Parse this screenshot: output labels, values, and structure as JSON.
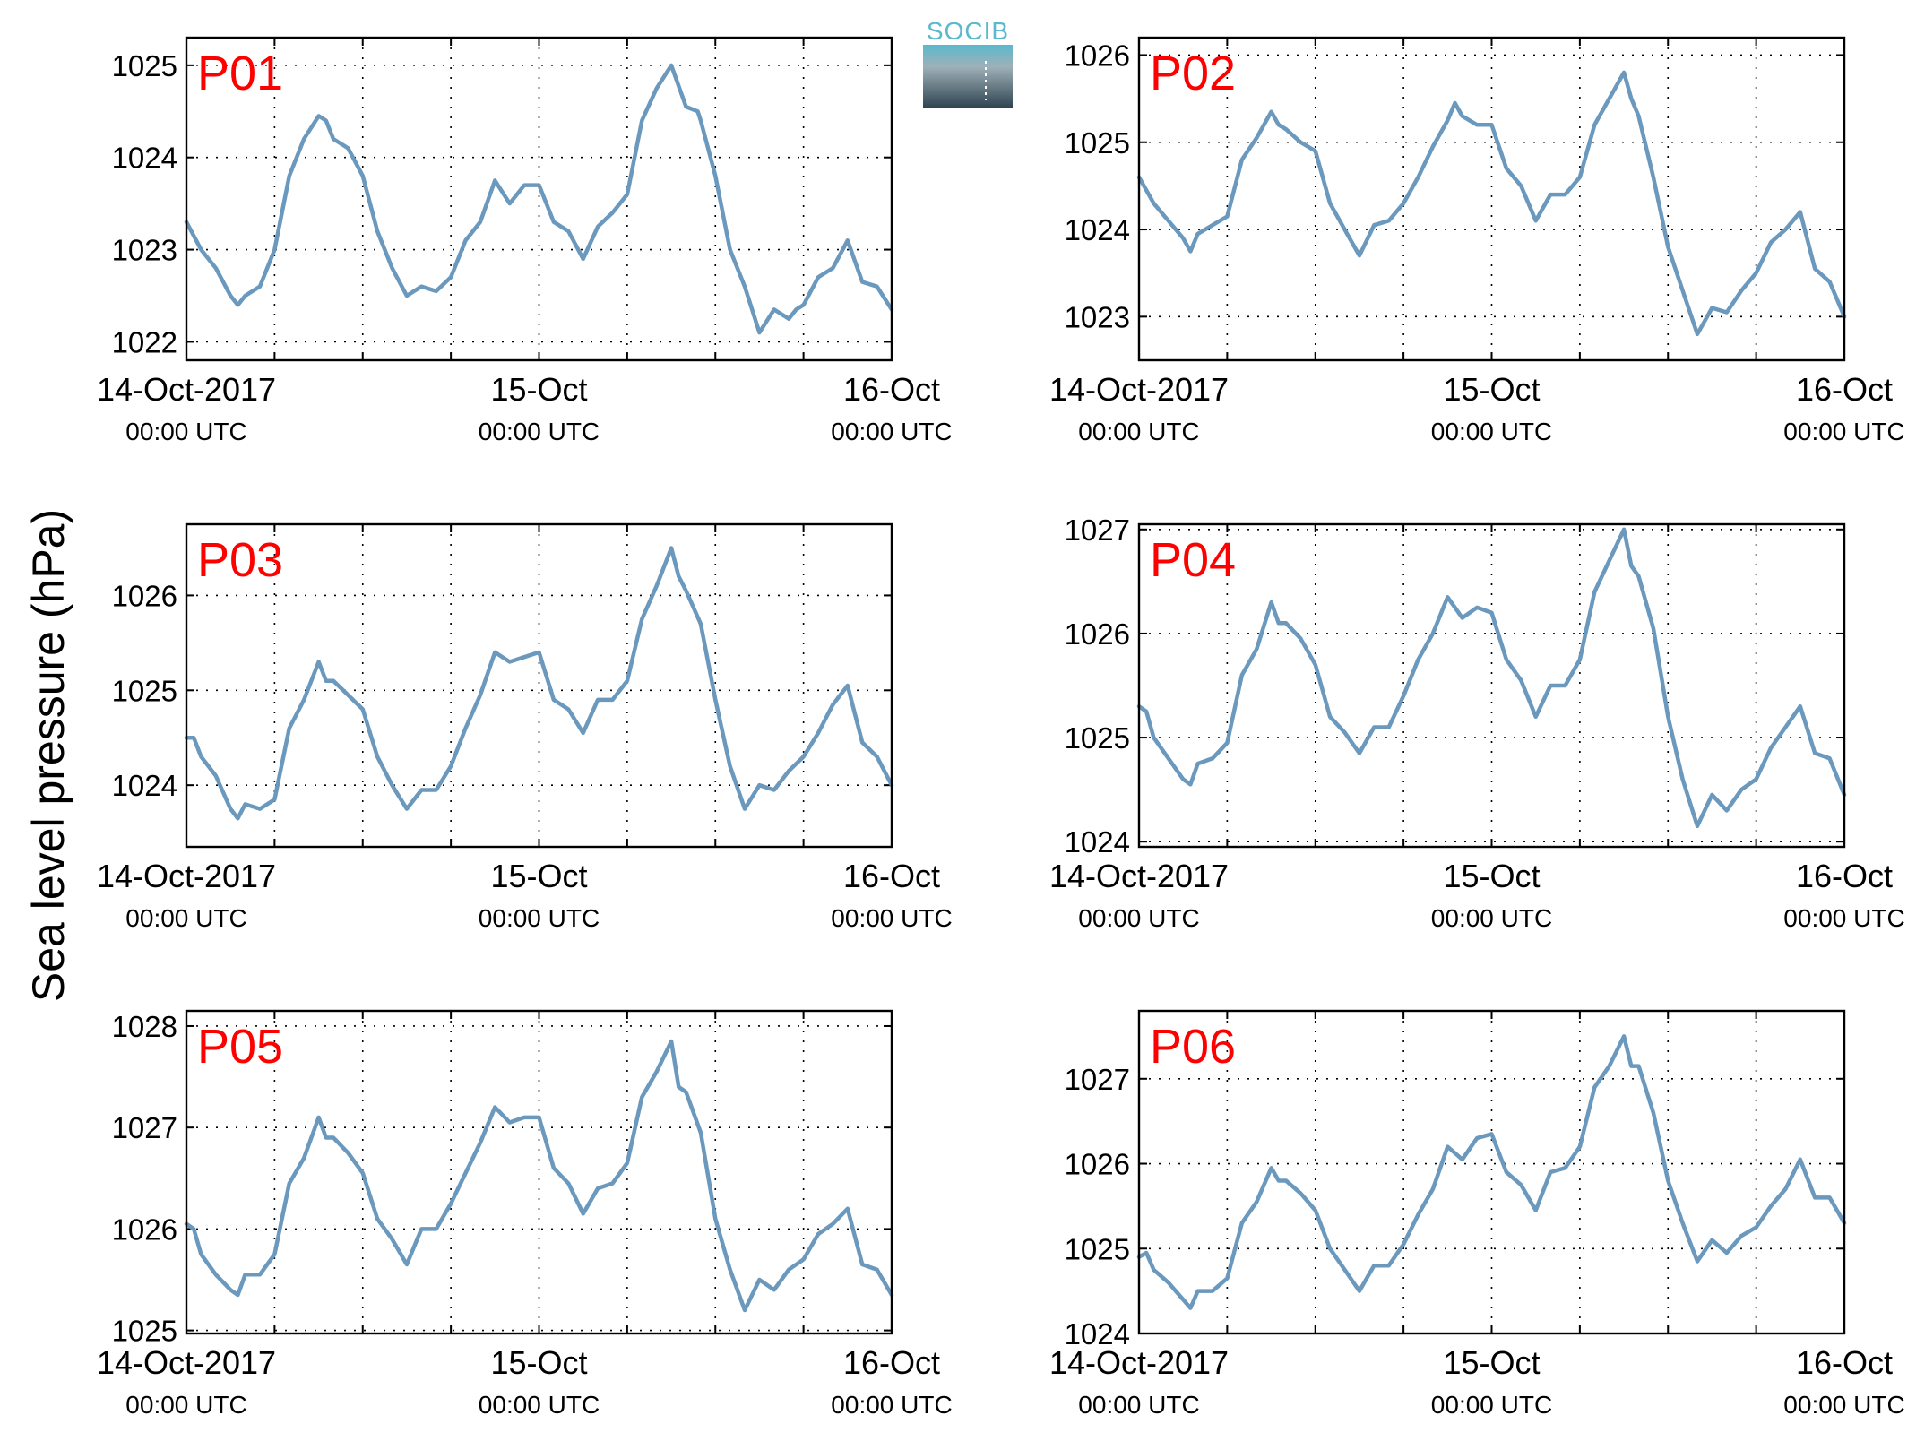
{
  "figure": {
    "ylabel": "Sea level pressure (hPa)",
    "logo_text": "SOCIB",
    "colors": {
      "series": "#6b98bd",
      "panel_label": "#ff0000",
      "logo_text": "#5ab9cd",
      "logo_dark": "#2f4552"
    }
  },
  "chart_data": [
    {
      "type": "line",
      "name": "P01",
      "xlim": [
        0,
        48
      ],
      "ylim": [
        1021.8,
        1025.3
      ],
      "yticks": [
        1022,
        1023,
        1024,
        1025
      ],
      "xticks": [
        {
          "x": 0,
          "label": "14-Oct-2017",
          "sublabel": "00:00 UTC"
        },
        {
          "x": 24,
          "label": "15-Oct",
          "sublabel": "00:00 UTC"
        },
        {
          "x": 48,
          "label": "16-Oct",
          "sublabel": "00:00 UTC"
        }
      ],
      "grid": true,
      "x": [
        0,
        1,
        2,
        3,
        3.5,
        4,
        5,
        6,
        7,
        8,
        9,
        9.5,
        10,
        11,
        12,
        13,
        14,
        15,
        16,
        17,
        18,
        19,
        20,
        21,
        22,
        23,
        24,
        25,
        26,
        27,
        28,
        29,
        30,
        31,
        32,
        33,
        34,
        34.8,
        35,
        36,
        37,
        38,
        39,
        40,
        41,
        41.5,
        42,
        43,
        44,
        45,
        46,
        47,
        48
      ],
      "y": [
        1023.3,
        1023,
        1022.8,
        1022.5,
        1022.4,
        1022.5,
        1022.6,
        1023,
        1023.8,
        1024.2,
        1024.45,
        1024.4,
        1024.2,
        1024.1,
        1023.8,
        1023.2,
        1022.8,
        1022.5,
        1022.6,
        1022.55,
        1022.7,
        1023.1,
        1023.3,
        1023.75,
        1023.5,
        1023.7,
        1023.7,
        1023.3,
        1023.2,
        1022.9,
        1023.25,
        1023.4,
        1023.6,
        1024.4,
        1024.75,
        1025,
        1024.55,
        1024.5,
        1024.4,
        1023.8,
        1023,
        1022.6,
        1022.1,
        1022.35,
        1022.25,
        1022.35,
        1022.4,
        1022.7,
        1022.8,
        1023.1,
        1022.65,
        1022.6,
        1022.35
      ]
    },
    {
      "type": "line",
      "name": "P02",
      "xlim": [
        0,
        48
      ],
      "ylim": [
        1022.5,
        1026.2
      ],
      "yticks": [
        1023,
        1024,
        1025,
        1026
      ],
      "xticks": [
        {
          "x": 0,
          "label": "14-Oct-2017",
          "sublabel": "00:00 UTC"
        },
        {
          "x": 24,
          "label": "15-Oct",
          "sublabel": "00:00 UTC"
        },
        {
          "x": 48,
          "label": "16-Oct",
          "sublabel": "00:00 UTC"
        }
      ],
      "grid": true,
      "x": [
        0,
        1,
        2,
        3,
        3.5,
        4,
        5,
        6,
        7,
        8,
        9,
        9.5,
        10,
        11,
        12,
        13,
        14,
        15,
        16,
        17,
        18,
        19,
        20,
        21,
        21.5,
        22,
        23,
        24,
        25,
        26,
        27,
        28,
        29,
        30,
        31,
        32,
        33,
        33.5,
        34,
        35,
        36,
        37,
        38,
        39,
        40,
        41,
        42,
        43,
        44,
        45,
        46,
        47,
        48
      ],
      "y": [
        1024.6,
        1024.3,
        1024.1,
        1023.9,
        1023.75,
        1023.95,
        1024.05,
        1024.15,
        1024.8,
        1025.05,
        1025.35,
        1025.2,
        1025.15,
        1025,
        1024.9,
        1024.3,
        1024,
        1023.7,
        1024.05,
        1024.1,
        1024.3,
        1024.6,
        1024.95,
        1025.25,
        1025.45,
        1025.3,
        1025.2,
        1025.2,
        1024.7,
        1024.5,
        1024.1,
        1024.4,
        1024.4,
        1024.6,
        1025.2,
        1025.5,
        1025.8,
        1025.5,
        1025.3,
        1024.6,
        1023.8,
        1023.3,
        1022.8,
        1023.1,
        1023.05,
        1023.3,
        1023.5,
        1023.85,
        1024,
        1024.2,
        1023.55,
        1023.4,
        1023
      ]
    },
    {
      "type": "line",
      "name": "P03",
      "xlim": [
        0,
        48
      ],
      "ylim": [
        1023.35,
        1026.75
      ],
      "yticks": [
        1024,
        1025,
        1026
      ],
      "xticks": [
        {
          "x": 0,
          "label": "14-Oct-2017",
          "sublabel": "00:00 UTC"
        },
        {
          "x": 24,
          "label": "15-Oct",
          "sublabel": "00:00 UTC"
        },
        {
          "x": 48,
          "label": "16-Oct",
          "sublabel": "00:00 UTC"
        }
      ],
      "grid": true,
      "x": [
        0,
        0.5,
        1,
        2,
        3,
        3.5,
        4,
        5,
        6,
        7,
        8,
        9,
        9.5,
        10,
        11,
        12,
        13,
        14,
        15,
        16,
        17,
        18,
        19,
        20,
        21,
        22,
        23,
        24,
        25,
        26,
        27,
        28,
        29,
        30,
        31,
        32,
        33,
        33.5,
        34,
        35,
        36,
        37,
        38,
        39,
        40,
        41,
        42,
        43,
        44,
        45,
        46,
        47,
        48
      ],
      "y": [
        1024.5,
        1024.5,
        1024.3,
        1024.1,
        1023.75,
        1023.65,
        1023.8,
        1023.75,
        1023.85,
        1024.6,
        1024.9,
        1025.3,
        1025.1,
        1025.1,
        1024.95,
        1024.8,
        1024.3,
        1024,
        1023.75,
        1023.95,
        1023.95,
        1024.2,
        1024.6,
        1024.95,
        1025.4,
        1025.3,
        1025.35,
        1025.4,
        1024.9,
        1024.8,
        1024.55,
        1024.9,
        1024.9,
        1025.1,
        1025.75,
        1026.1,
        1026.5,
        1026.2,
        1026.05,
        1025.7,
        1024.9,
        1024.2,
        1023.75,
        1024,
        1023.95,
        1024.15,
        1024.3,
        1024.55,
        1024.85,
        1025.05,
        1024.45,
        1024.3,
        1024
      ]
    },
    {
      "type": "line",
      "name": "P04",
      "xlim": [
        0,
        48
      ],
      "ylim": [
        1023.95,
        1027.05
      ],
      "yticks": [
        1024,
        1025,
        1026,
        1027
      ],
      "xticks": [
        {
          "x": 0,
          "label": "14-Oct-2017",
          "sublabel": "00:00 UTC"
        },
        {
          "x": 24,
          "label": "15-Oct",
          "sublabel": "00:00 UTC"
        },
        {
          "x": 48,
          "label": "16-Oct",
          "sublabel": "00:00 UTC"
        }
      ],
      "grid": true,
      "x": [
        0,
        0.5,
        1,
        2,
        3,
        3.5,
        4,
        5,
        6,
        7,
        8,
        9,
        9.5,
        10,
        11,
        12,
        13,
        14,
        15,
        16,
        17,
        18,
        19,
        20,
        21,
        22,
        23,
        24,
        25,
        26,
        27,
        28,
        29,
        30,
        31,
        32,
        33,
        33.5,
        34,
        35,
        36,
        37,
        38,
        39,
        40,
        41,
        42,
        43,
        44,
        45,
        46,
        47,
        48
      ],
      "y": [
        1025.3,
        1025.25,
        1025,
        1024.8,
        1024.6,
        1024.55,
        1024.75,
        1024.8,
        1024.95,
        1025.6,
        1025.85,
        1026.3,
        1026.1,
        1026.1,
        1025.95,
        1025.7,
        1025.2,
        1025.05,
        1024.85,
        1025.1,
        1025.1,
        1025.4,
        1025.75,
        1026,
        1026.35,
        1026.15,
        1026.25,
        1026.2,
        1025.75,
        1025.55,
        1025.2,
        1025.5,
        1025.5,
        1025.75,
        1026.4,
        1026.7,
        1027,
        1026.65,
        1026.55,
        1026.05,
        1025.2,
        1024.6,
        1024.15,
        1024.45,
        1024.3,
        1024.5,
        1024.6,
        1024.9,
        1025.1,
        1025.3,
        1024.85,
        1024.8,
        1024.45
      ]
    },
    {
      "type": "line",
      "name": "P05",
      "xlim": [
        0,
        48
      ],
      "ylim": [
        1024.97,
        1028.15
      ],
      "yticks": [
        1025,
        1026,
        1027,
        1028
      ],
      "xticks": [
        {
          "x": 0,
          "label": "14-Oct-2017",
          "sublabel": "00:00 UTC"
        },
        {
          "x": 24,
          "label": "15-Oct",
          "sublabel": "00:00 UTC"
        },
        {
          "x": 48,
          "label": "16-Oct",
          "sublabel": "00:00 UTC"
        }
      ],
      "grid": true,
      "x": [
        0,
        0.5,
        1,
        2,
        3,
        3.5,
        4,
        5,
        6,
        7,
        8,
        9,
        9.5,
        10,
        11,
        12,
        13,
        14,
        15,
        16,
        17,
        18,
        19,
        20,
        21,
        22,
        23,
        24,
        25,
        26,
        27,
        28,
        29,
        30,
        31,
        32,
        33,
        33.5,
        34,
        35,
        36,
        37,
        38,
        39,
        40,
        41,
        42,
        43,
        44,
        45,
        46,
        47,
        48
      ],
      "y": [
        1026.05,
        1026,
        1025.75,
        1025.55,
        1025.4,
        1025.35,
        1025.55,
        1025.55,
        1025.75,
        1026.45,
        1026.7,
        1027.1,
        1026.9,
        1026.9,
        1026.75,
        1026.55,
        1026.1,
        1025.9,
        1025.65,
        1026,
        1026,
        1026.25,
        1026.55,
        1026.85,
        1027.2,
        1027.05,
        1027.1,
        1027.1,
        1026.6,
        1026.45,
        1026.15,
        1026.4,
        1026.45,
        1026.65,
        1027.3,
        1027.55,
        1027.85,
        1027.4,
        1027.35,
        1026.95,
        1026.1,
        1025.6,
        1025.2,
        1025.5,
        1025.4,
        1025.6,
        1025.7,
        1025.95,
        1026.05,
        1026.2,
        1025.65,
        1025.6,
        1025.35
      ]
    },
    {
      "type": "line",
      "name": "P06",
      "xlim": [
        0,
        48
      ],
      "ylim": [
        1024,
        1027.8
      ],
      "yticks": [
        1024,
        1025,
        1026,
        1027
      ],
      "xticks": [
        {
          "x": 0,
          "label": "14-Oct-2017",
          "sublabel": "00:00 UTC"
        },
        {
          "x": 24,
          "label": "15-Oct",
          "sublabel": "00:00 UTC"
        },
        {
          "x": 48,
          "label": "16-Oct",
          "sublabel": "00:00 UTC"
        }
      ],
      "grid": true,
      "x": [
        0,
        0.5,
        1,
        2,
        3,
        3.5,
        4,
        5,
        6,
        7,
        8,
        9,
        9.5,
        10,
        11,
        12,
        13,
        14,
        15,
        16,
        17,
        18,
        19,
        20,
        21,
        22,
        23,
        24,
        25,
        26,
        27,
        28,
        29,
        30,
        31,
        32,
        33,
        33.5,
        34,
        35,
        36,
        37,
        38,
        39,
        40,
        41,
        42,
        43,
        44,
        45,
        46,
        47,
        48
      ],
      "y": [
        1024.9,
        1024.95,
        1024.75,
        1024.6,
        1024.4,
        1024.3,
        1024.5,
        1024.5,
        1024.65,
        1025.3,
        1025.55,
        1025.95,
        1025.8,
        1025.8,
        1025.65,
        1025.45,
        1025,
        1024.75,
        1024.5,
        1024.8,
        1024.8,
        1025.05,
        1025.4,
        1025.7,
        1026.2,
        1026.05,
        1026.3,
        1026.35,
        1025.9,
        1025.75,
        1025.45,
        1025.9,
        1025.95,
        1026.2,
        1026.9,
        1027.15,
        1027.5,
        1027.15,
        1027.15,
        1026.6,
        1025.8,
        1025.3,
        1024.85,
        1025.1,
        1024.95,
        1025.15,
        1025.25,
        1025.5,
        1025.7,
        1026.05,
        1025.6,
        1025.6,
        1025.3
      ]
    }
  ]
}
